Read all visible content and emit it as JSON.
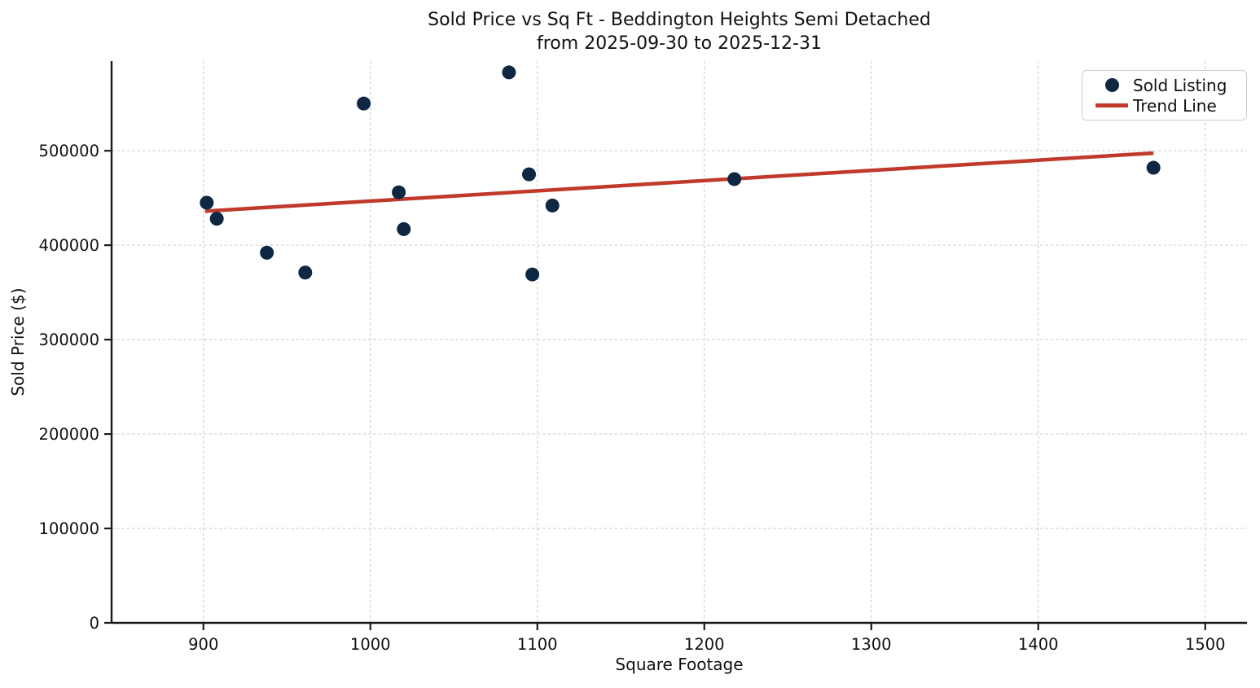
{
  "chart_data": {
    "type": "scatter",
    "title": "Sold Price vs Sq Ft - Beddington Heights Semi Detached",
    "subtitle": "from 2025-09-30 to 2025-12-31",
    "xlabel": "Square Footage",
    "ylabel": "Sold Price ($)",
    "xlim": [
      845,
      1525
    ],
    "ylim": [
      0,
      595000
    ],
    "x_ticks": [
      900,
      1000,
      1100,
      1200,
      1300,
      1400,
      1500
    ],
    "y_ticks": [
      0,
      100000,
      200000,
      300000,
      400000,
      500000
    ],
    "grid": true,
    "grid_style": "dashed",
    "legend_position": "upper right",
    "colors": {
      "point": "#0e2742",
      "trend": "#c0392b",
      "grid": "#cfcfcf",
      "axis": "#1a1a1a",
      "text": "#111111"
    },
    "series": [
      {
        "name": "Sold Listing",
        "kind": "scatter",
        "color": "#0e2742",
        "points": [
          {
            "sqft": 902,
            "price": 445000
          },
          {
            "sqft": 908,
            "price": 428000
          },
          {
            "sqft": 938,
            "price": 392000
          },
          {
            "sqft": 961,
            "price": 371000
          },
          {
            "sqft": 996,
            "price": 550000
          },
          {
            "sqft": 1017,
            "price": 456000
          },
          {
            "sqft": 1020,
            "price": 417000
          },
          {
            "sqft": 1083,
            "price": 583000
          },
          {
            "sqft": 1095,
            "price": 475000
          },
          {
            "sqft": 1097,
            "price": 369000
          },
          {
            "sqft": 1109,
            "price": 442000
          },
          {
            "sqft": 1218,
            "price": 470000
          },
          {
            "sqft": 1469,
            "price": 482000
          }
        ]
      },
      {
        "name": "Trend Line",
        "kind": "line",
        "color": "#c0392b",
        "points": [
          {
            "sqft": 901,
            "price": 436000
          },
          {
            "sqft": 1469,
            "price": 497500
          }
        ]
      }
    ]
  }
}
